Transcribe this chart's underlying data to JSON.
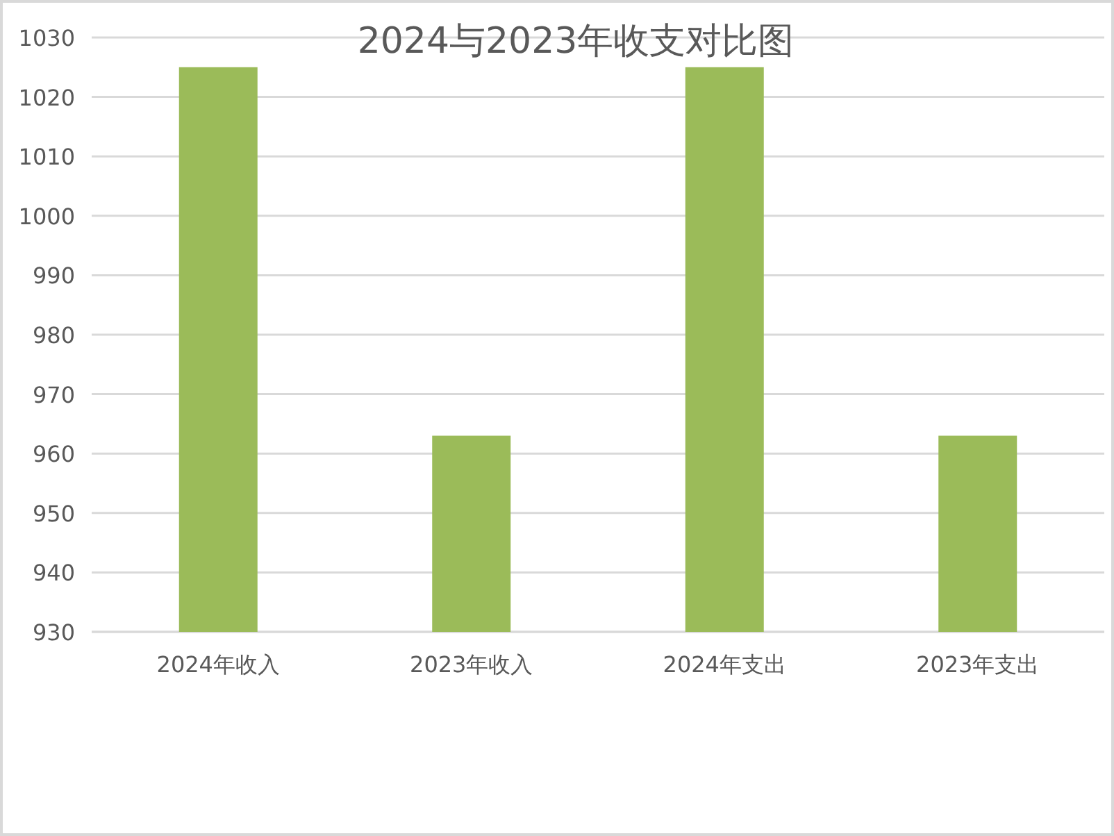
{
  "chart_data": {
    "type": "bar",
    "title": "2024与2023年收支对比图",
    "categories": [
      "2024年收入",
      "2023年收入",
      "2024年支出",
      "2023年支出"
    ],
    "values": [
      1025,
      963,
      1025,
      963
    ],
    "color": "#9bbb59",
    "ylim": [
      930,
      1030
    ],
    "yticks": [
      930,
      940,
      950,
      960,
      970,
      980,
      990,
      1000,
      1010,
      1020,
      1030
    ],
    "grid": "y"
  }
}
